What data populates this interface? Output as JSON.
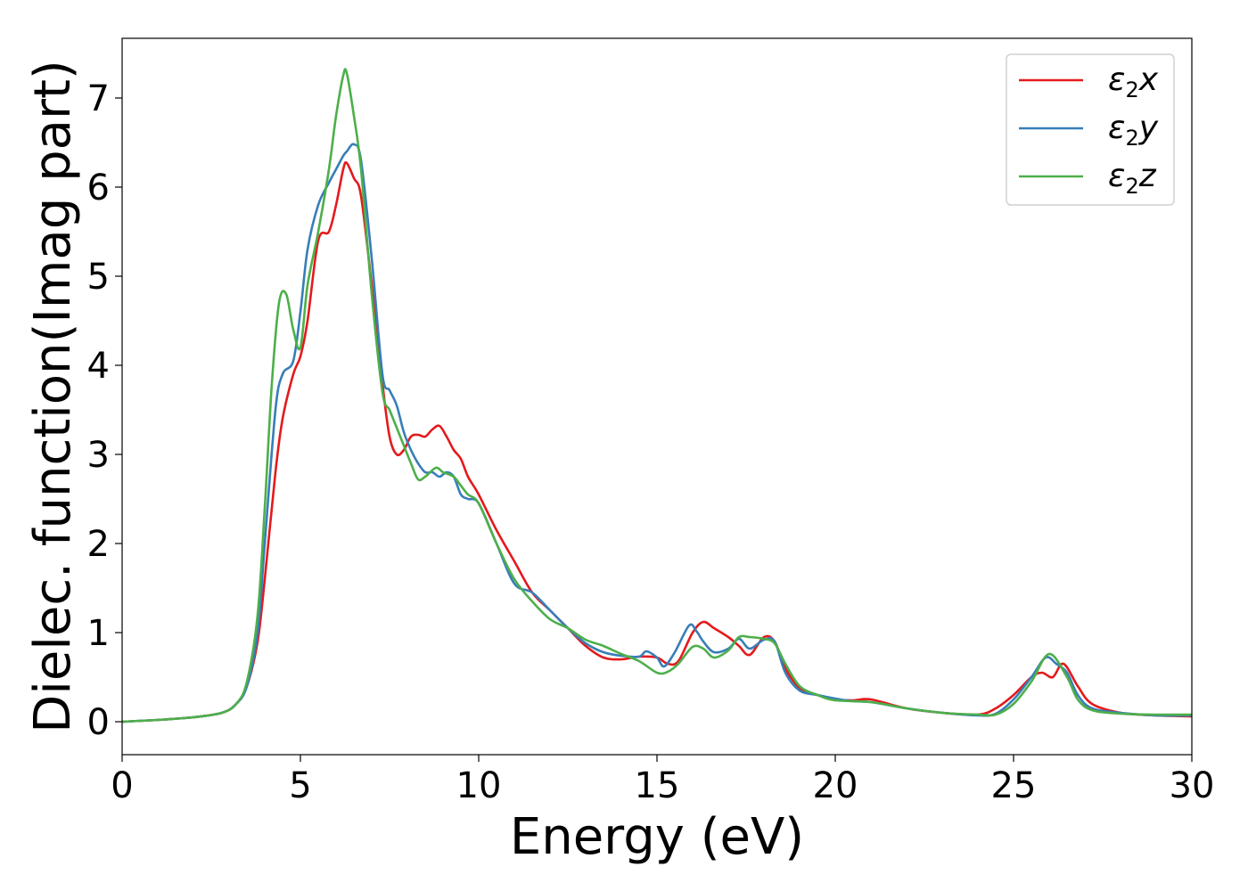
{
  "chart_data": {
    "type": "line",
    "xlabel": "Energy (eV)",
    "ylabel": "Dielec. function(Imag part)",
    "xlim": [
      0,
      30
    ],
    "ylim": [
      -0.37,
      7.67
    ],
    "xticks": [
      "0",
      "5",
      "10",
      "15",
      "20",
      "25",
      "30"
    ],
    "yticks": [
      "0",
      "1",
      "2",
      "3",
      "4",
      "5",
      "6",
      "7"
    ],
    "grid": false,
    "legend_position": "top-right",
    "series": [
      {
        "name": "ε₂x",
        "legend_base": "ε",
        "legend_sub": "2",
        "legend_var": "x",
        "color": "#e41a1c",
        "x": [
          0,
          1,
          2,
          2.8,
          3.2,
          3.5,
          3.8,
          4.0,
          4.3,
          4.5,
          4.8,
          5.0,
          5.2,
          5.5,
          5.8,
          6.0,
          6.2,
          6.3,
          6.5,
          6.7,
          7.0,
          7.3,
          7.5,
          7.7,
          7.9,
          8.1,
          8.3,
          8.5,
          8.7,
          8.9,
          9.1,
          9.3,
          9.5,
          9.7,
          10.0,
          10.5,
          11.0,
          11.5,
          12.0,
          12.5,
          13.0,
          13.5,
          14.0,
          14.5,
          15.0,
          15.3,
          15.6,
          16.0,
          16.3,
          16.6,
          17.0,
          17.3,
          17.6,
          18.0,
          18.3,
          18.6,
          19.0,
          19.5,
          20.0,
          20.5,
          21.0,
          22.0,
          23.0,
          24.0,
          24.5,
          25.0,
          25.5,
          25.8,
          26.1,
          26.4,
          26.8,
          27.2,
          28.0,
          29.0,
          30.0
        ],
        "y": [
          0.0,
          0.02,
          0.05,
          0.1,
          0.2,
          0.4,
          0.9,
          1.6,
          2.8,
          3.4,
          3.9,
          4.1,
          4.5,
          5.4,
          5.5,
          5.8,
          6.2,
          6.27,
          6.1,
          5.9,
          4.9,
          3.8,
          3.2,
          3.0,
          3.05,
          3.2,
          3.22,
          3.2,
          3.28,
          3.32,
          3.2,
          3.05,
          2.95,
          2.75,
          2.55,
          2.15,
          1.8,
          1.45,
          1.25,
          1.05,
          0.85,
          0.72,
          0.7,
          0.73,
          0.72,
          0.65,
          0.68,
          1.0,
          1.12,
          1.05,
          0.95,
          0.85,
          0.75,
          0.95,
          0.9,
          0.6,
          0.38,
          0.3,
          0.25,
          0.24,
          0.25,
          0.15,
          0.1,
          0.08,
          0.15,
          0.3,
          0.5,
          0.55,
          0.5,
          0.65,
          0.4,
          0.2,
          0.1,
          0.07,
          0.06
        ]
      },
      {
        "name": "ε₂y",
        "legend_base": "ε",
        "legend_sub": "2",
        "legend_var": "y",
        "color": "#377eb8",
        "x": [
          0,
          1,
          2,
          2.8,
          3.2,
          3.5,
          3.8,
          4.0,
          4.3,
          4.5,
          4.8,
          5.0,
          5.2,
          5.5,
          5.8,
          6.0,
          6.2,
          6.3,
          6.5,
          6.7,
          7.0,
          7.3,
          7.5,
          7.7,
          7.9,
          8.1,
          8.3,
          8.5,
          8.7,
          8.9,
          9.1,
          9.3,
          9.5,
          9.7,
          10.0,
          10.5,
          11.0,
          11.5,
          12.0,
          12.5,
          13.0,
          13.5,
          14.0,
          14.5,
          14.7,
          15.0,
          15.2,
          15.5,
          15.9,
          16.1,
          16.3,
          16.6,
          17.0,
          17.3,
          17.6,
          18.0,
          18.3,
          18.6,
          19.0,
          19.5,
          20.0,
          20.5,
          21.0,
          22.0,
          23.0,
          24.0,
          24.5,
          25.0,
          25.5,
          25.9,
          26.2,
          26.5,
          26.8,
          27.2,
          28.0,
          29.0,
          30.0
        ],
        "y": [
          0.0,
          0.02,
          0.05,
          0.1,
          0.2,
          0.4,
          1.0,
          2.0,
          3.5,
          3.9,
          4.05,
          4.6,
          5.3,
          5.8,
          6.05,
          6.2,
          6.35,
          6.4,
          6.48,
          6.3,
          5.2,
          3.9,
          3.72,
          3.55,
          3.25,
          3.05,
          2.9,
          2.8,
          2.8,
          2.75,
          2.8,
          2.75,
          2.55,
          2.5,
          2.45,
          2.0,
          1.55,
          1.45,
          1.25,
          1.05,
          0.88,
          0.78,
          0.74,
          0.73,
          0.79,
          0.72,
          0.62,
          0.78,
          1.08,
          1.02,
          0.9,
          0.78,
          0.82,
          0.93,
          0.82,
          0.92,
          0.9,
          0.55,
          0.35,
          0.3,
          0.26,
          0.23,
          0.22,
          0.15,
          0.1,
          0.07,
          0.09,
          0.25,
          0.5,
          0.72,
          0.65,
          0.55,
          0.3,
          0.15,
          0.1,
          0.07,
          0.07
        ]
      },
      {
        "name": "ε₂z",
        "legend_base": "ε",
        "legend_sub": "2",
        "legend_var": "z",
        "color": "#4daf4a",
        "x": [
          0,
          1,
          2,
          2.8,
          3.2,
          3.5,
          3.8,
          4.0,
          4.2,
          4.4,
          4.6,
          4.8,
          5.0,
          5.2,
          5.5,
          5.8,
          6.0,
          6.2,
          6.3,
          6.5,
          6.7,
          7.0,
          7.3,
          7.5,
          7.7,
          7.9,
          8.1,
          8.3,
          8.5,
          8.8,
          9.0,
          9.3,
          9.5,
          9.7,
          10.0,
          10.5,
          11.0,
          11.5,
          12.0,
          12.5,
          13.0,
          13.5,
          14.0,
          14.5,
          15.0,
          15.3,
          15.6,
          16.0,
          16.3,
          16.6,
          17.0,
          17.3,
          17.6,
          18.0,
          18.3,
          18.6,
          19.0,
          19.5,
          20.0,
          21.0,
          22.0,
          23.0,
          24.0,
          24.5,
          25.0,
          25.5,
          26.0,
          26.5,
          26.8,
          27.2,
          28.0,
          29.0,
          30.0
        ],
        "y": [
          0.0,
          0.02,
          0.05,
          0.1,
          0.2,
          0.45,
          1.2,
          2.4,
          3.8,
          4.7,
          4.8,
          4.4,
          4.2,
          4.9,
          5.5,
          6.2,
          6.8,
          7.25,
          7.28,
          6.8,
          6.2,
          4.8,
          3.7,
          3.5,
          3.3,
          3.1,
          2.9,
          2.72,
          2.75,
          2.85,
          2.8,
          2.75,
          2.65,
          2.55,
          2.45,
          2.0,
          1.6,
          1.35,
          1.15,
          1.05,
          0.92,
          0.85,
          0.76,
          0.68,
          0.55,
          0.56,
          0.65,
          0.84,
          0.82,
          0.72,
          0.8,
          0.95,
          0.95,
          0.93,
          0.88,
          0.65,
          0.4,
          0.3,
          0.24,
          0.22,
          0.15,
          0.1,
          0.08,
          0.08,
          0.2,
          0.45,
          0.76,
          0.5,
          0.25,
          0.13,
          0.09,
          0.08,
          0.08
        ]
      }
    ]
  }
}
